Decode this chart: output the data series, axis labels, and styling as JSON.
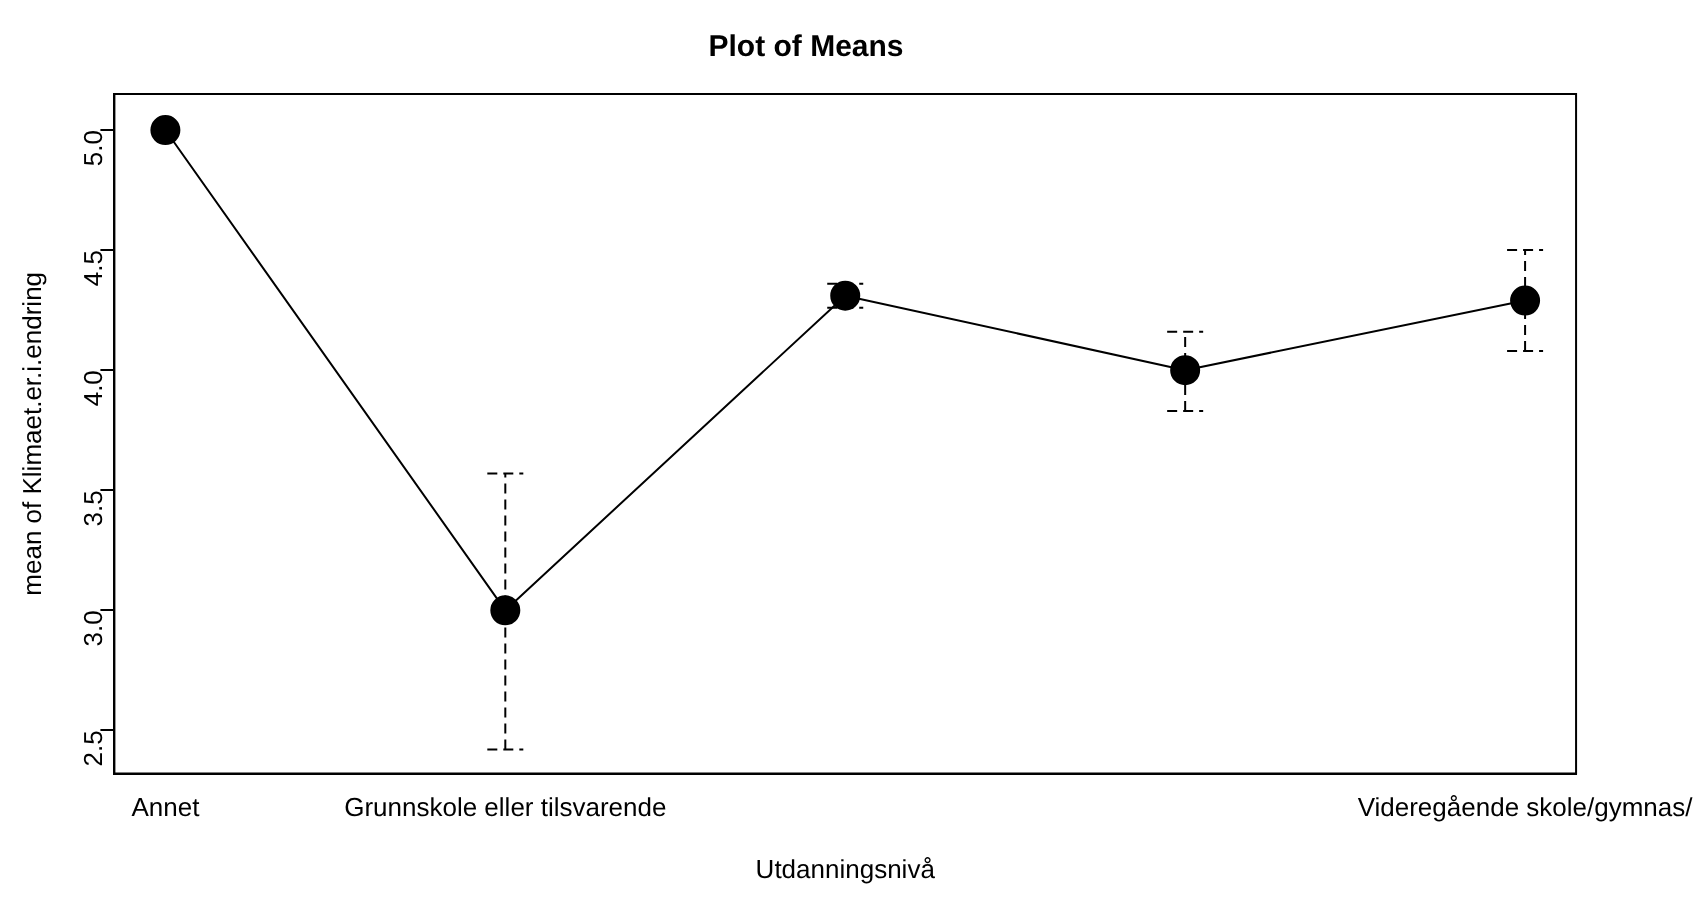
{
  "chart_data": {
    "type": "line",
    "title": "Plot of Means",
    "xlabel": "Utdanningsnivå",
    "ylabel": "mean of Klimaet.er.i.endring",
    "categories": [
      "Annet",
      "Grunnskole eller tilsvarende",
      null,
      null,
      "Videregående skole/gymnas/"
    ],
    "series": [
      {
        "color": "#000000",
        "values": [
          5.0,
          3.0,
          4.31,
          4.0,
          4.29
        ],
        "errors": [
          null,
          [
            2.42,
            3.57
          ],
          [
            4.26,
            4.36
          ],
          [
            3.83,
            4.16
          ],
          [
            4.08,
            4.5
          ]
        ]
      }
    ],
    "ylim": [
      2.32,
      5.15
    ],
    "yticks": [
      2.5,
      {
        "value": 3,
        "label": "3.0"
      },
      3.5,
      {
        "value": 4,
        "label": "4.0"
      },
      4.5,
      {
        "value": 5,
        "label": "5.0"
      }
    ],
    "marker": "circle",
    "line_style": "solid",
    "grid": false,
    "legend": false
  }
}
